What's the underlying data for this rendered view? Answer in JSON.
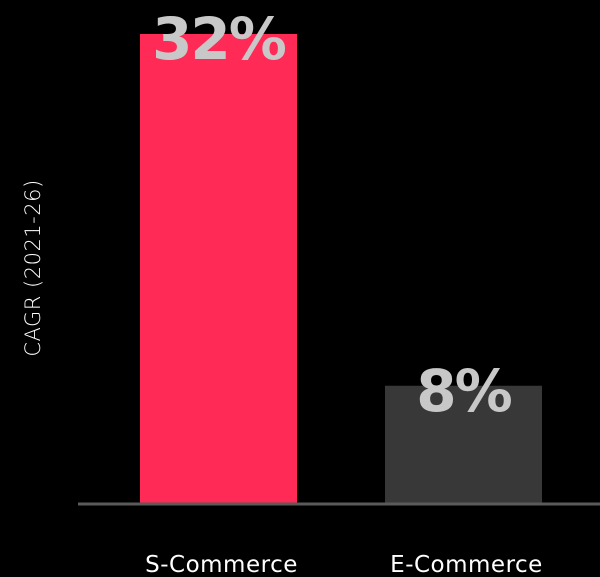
{
  "chart_data": {
    "type": "bar",
    "ylabel": "CAGR (2021-26)",
    "categories": [
      "S-Commerce",
      "E-Commerce"
    ],
    "values": [
      32,
      8
    ],
    "data_labels": [
      "32%",
      "8%"
    ],
    "ylim": [
      0,
      32
    ],
    "grid": false,
    "colors": {
      "background": "#000000",
      "bars": [
        "#FF2A55",
        "#383838"
      ],
      "axis": "#5A5A5A",
      "label_text": "#C8C8C8",
      "tick_text": "#FFFFFF"
    }
  }
}
